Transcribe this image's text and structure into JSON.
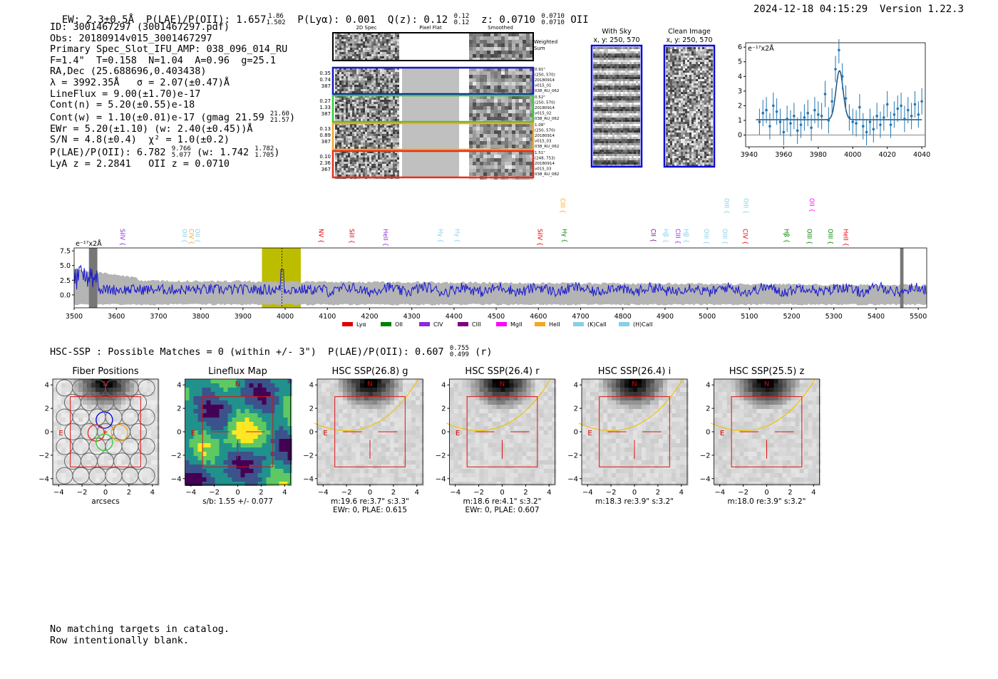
{
  "header": {
    "ew": "EW: 2.3±0.5Å",
    "plae_label": "P(LAE)/P(OII): 1.657",
    "plae_hi": "1.86",
    "plae_lo": "1.502",
    "plya": "P(Lyα): 0.001",
    "qz_label": "Q(z): 0.12",
    "qz_hi": "0.12",
    "qz_lo": "0.12",
    "z_label": "z: 0.0710",
    "z_hi": "0.0710",
    "z_lo": "0.0710",
    "z_line": "OII",
    "timestamp": "2024-12-18 04:15:29",
    "version": "Version 1.22.3"
  },
  "info": {
    "id": "ID: 3001467297 (3001467297.pdf)",
    "obs": "Obs: 20180914v015_3001467297",
    "slot": "Primary Spec_Slot_IFU_AMP: 038_096_014_RU",
    "params": "F=1.4\"  T=0.158  N=1.04  A=0.96  g=25.1",
    "radec": "RA,Dec (25.688696,0.403438)",
    "lambda_sigma": "λ = 3992.35Å   σ = 2.07(±0.47)Å",
    "lineflux": "LineFlux = 9.00(±1.70)e-17",
    "contn": "Cont(n) = 5.20(±0.55)e-18",
    "contw": "Cont(w) = 1.10(±0.01)e-17 (gmag 21.59",
    "gmag_hi": "21.60",
    "gmag_lo": "21.57",
    "contw_end": ")",
    "ewr": "EWr = 5.20(±1.10) (w: 2.40(±0.45))Å",
    "sn_chi": "S/N = 4.8(±0.4)  χ² = 1.0(±0.2)",
    "plae": "P(LAE)/P(OII): 6.782",
    "plae_hi": "9.766",
    "plae_lo": "5.077",
    "plae_w": "(w: 1.742",
    "plae_w_hi": "1.782",
    "plae_w_lo": "1.705",
    "plae_w_end": ")",
    "lya_oii": "LyA z = 2.2841   OII z = 0.0710"
  },
  "cutouts": {
    "col_headers": [
      "2D Spec",
      "Pixel Flat",
      "Smoothed"
    ],
    "weighted_sum": "Weighted\nSum",
    "rows": [
      {
        "left": [
          "0.35",
          "0.74",
          "387"
        ],
        "right": [
          "0.91\"",
          "(250, 570)",
          "20180914",
          "v015_01",
          "038_RU_062"
        ],
        "color": "#1515c8"
      },
      {
        "left": [
          "0.27",
          "1.33",
          "387"
        ],
        "right": [
          "0.52\"",
          "(250, 570)",
          "20180914",
          "v015_02",
          "038_RU_062"
        ],
        "color": "#33cc33"
      },
      {
        "left": [
          "0.13",
          "0.89",
          "387"
        ],
        "right": [
          "1.08\"",
          "(250, 570)",
          "20180914",
          "v015_03",
          "038_RU_062"
        ],
        "color": "#f5a623"
      },
      {
        "left": [
          "0.10",
          "2.36",
          "367"
        ],
        "right": [
          "1.51\"",
          "(248, 753)",
          "20180914",
          "v015_03",
          "038_RU_082"
        ],
        "color": "#e62e1e"
      }
    ]
  },
  "sky_panels": {
    "with_sky_title": "With Sky",
    "with_sky_coords": "x, y: 250, 570",
    "clean_title": "Clean Image",
    "clean_coords": "x, y: 250, 570"
  },
  "zoom_chart_data": {
    "type": "scatter",
    "unit_label": "e⁻¹⁷x2Å",
    "x_ticks": [
      3940,
      3960,
      3980,
      4000,
      4020,
      4040
    ],
    "y_ticks": [
      0,
      1,
      2,
      3,
      4,
      5,
      6
    ],
    "xlim": [
      3938,
      4042
    ],
    "ylim": [
      -0.8,
      6.3
    ],
    "points_x": [
      3946,
      3948,
      3950,
      3952,
      3954,
      3956,
      3958,
      3960,
      3962,
      3964,
      3966,
      3968,
      3970,
      3972,
      3974,
      3976,
      3978,
      3980,
      3982,
      3984,
      3986,
      3988,
      3990,
      3992,
      3994,
      3996,
      3998,
      4000,
      4002,
      4004,
      4006,
      4008,
      4010,
      4012,
      4014,
      4016,
      4018,
      4020,
      4022,
      4024,
      4026,
      4028,
      4030,
      4032,
      4034,
      4036,
      4038,
      4040
    ],
    "points_y": [
      0.9,
      1.5,
      1.7,
      0.6,
      2.0,
      1.6,
      0.9,
      0.2,
      1.1,
      0.8,
      1.3,
      0.3,
      0.7,
      1.2,
      1.5,
      0.5,
      1.7,
      1.4,
      1.3,
      2.8,
      1.0,
      2.3,
      4.5,
      5.8,
      4.0,
      2.5,
      1.2,
      0.9,
      0.8,
      1.9,
      0.6,
      0.2,
      0.9,
      0.4,
      1.3,
      0.7,
      1.2,
      2.1,
      0.7,
      1.4,
      1.8,
      2.0,
      1.1,
      1.7,
      1.3,
      2.1,
      1.4,
      2.3
    ],
    "fit_baseline": 1.05,
    "fit_peak": 4.4,
    "fit_center": 3992.35,
    "fit_sigma": 2.07
  },
  "spectrum_chart_data": {
    "type": "line",
    "unit_label": "e⁻¹⁷x2Å",
    "x_ticks": [
      3500,
      3600,
      3700,
      3800,
      3900,
      4000,
      4100,
      4200,
      4300,
      4400,
      4500,
      4600,
      4700,
      4800,
      4900,
      5000,
      5100,
      5200,
      5300,
      5400,
      5500
    ],
    "y_ticks": [
      "7.5",
      "5.0",
      "2.5",
      "0.0"
    ],
    "xlim": [
      3500,
      5520
    ],
    "ylim": [
      -2.2,
      8.0
    ],
    "line_markers": [
      {
        "label": "SiIV",
        "x": 3605,
        "color": "#8a2be2",
        "tier": 0
      },
      {
        "label": "OII",
        "x": 3752,
        "color": "#87ceeb",
        "tier": 0
      },
      {
        "label": "CIV",
        "x": 3768,
        "color": "#f5a623",
        "tier": 0
      },
      {
        "label": "OII",
        "x": 3782,
        "color": "#87ceeb",
        "tier": 0
      },
      {
        "label": "NV",
        "x": 4075,
        "color": "#e00000",
        "tier": 0
      },
      {
        "label": "SiII",
        "x": 4148,
        "color": "#e00000",
        "tier": 0
      },
      {
        "label": "HeII",
        "x": 4228,
        "color": "#8a2be2",
        "tier": 0
      },
      {
        "label": "Hγ",
        "x": 4358,
        "color": "#87ceeb",
        "tier": 0
      },
      {
        "label": "Hγ",
        "x": 4398,
        "color": "#87ceeb",
        "tier": 0
      },
      {
        "label": "SiIV",
        "x": 4594,
        "color": "#e00000",
        "tier": 0
      },
      {
        "label": "CIII",
        "x": 4648,
        "color": "#f5a623",
        "tier": 1
      },
      {
        "label": "Hγ",
        "x": 4652,
        "color": "#008000",
        "tier": 0
      },
      {
        "label": "CII",
        "x": 4862,
        "color": "#800080",
        "tier": 0
      },
      {
        "label": "Hβ",
        "x": 4892,
        "color": "#87ceeb",
        "tier": 0
      },
      {
        "label": "CIII",
        "x": 4920,
        "color": "#8a2be2",
        "tier": 0
      },
      {
        "label": "Hβ",
        "x": 4940,
        "color": "#87ceeb",
        "tier": 0
      },
      {
        "label": "OIII",
        "x": 4988,
        "color": "#87ceeb",
        "tier": 0
      },
      {
        "label": "OIII",
        "x": 5032,
        "color": "#87ceeb",
        "tier": 0
      },
      {
        "label": "OIII",
        "x": 5036,
        "color": "#87ceeb",
        "tier": 1
      },
      {
        "label": "CIV",
        "x": 5080,
        "color": "#e00000",
        "tier": 0
      },
      {
        "label": "OIII",
        "x": 5082,
        "color": "#87ceeb",
        "tier": 1
      },
      {
        "label": "Hβ",
        "x": 5178,
        "color": "#008000",
        "tier": 0
      },
      {
        "label": "OIII",
        "x": 5232,
        "color": "#008000",
        "tier": 0
      },
      {
        "label": "OII",
        "x": 5238,
        "color": "#ff00ff",
        "tier": 1
      },
      {
        "label": "OIII",
        "x": 5282,
        "color": "#008000",
        "tier": 0
      },
      {
        "label": "HeII",
        "x": 5318,
        "color": "#e00000",
        "tier": 0
      }
    ],
    "legend": [
      {
        "label": "Lyα",
        "color": "#e00000"
      },
      {
        "label": "OII",
        "color": "#008000"
      },
      {
        "label": "CIV",
        "color": "#8a2be2"
      },
      {
        "label": "CIII",
        "color": "#800080"
      },
      {
        "label": "MgII",
        "color": "#ff00ff"
      },
      {
        "label": "HeII",
        "color": "#f5a623"
      },
      {
        "label": "(K)CaII",
        "color": "#87ceeb"
      },
      {
        "label": "(H)CaII",
        "color": "#87ceeb"
      }
    ],
    "highlight_range": [
      3945,
      4037
    ],
    "line_center": 3992.35,
    "masked_regions": [
      [
        3535,
        3555
      ],
      [
        5457,
        5465
      ]
    ],
    "series_seed": 1467297
  },
  "hsc": {
    "title_text": "HSC-SSP : Possible Matches = 0 (within +/- 3\")  P(LAE)/P(OII): 0.607",
    "plae_hi": "0.755",
    "plae_lo": "0.499",
    "band": "(r)"
  },
  "stamp_panels": [
    {
      "title": "Fiber Positions",
      "caption": [
        "arcsecs"
      ],
      "kind": "fibers"
    },
    {
      "title": "Lineflux Map",
      "caption": [
        "s/b: 1.55 +/- 0.077"
      ],
      "kind": "lineflux"
    },
    {
      "title": "HSC SSP(26.8) g",
      "caption": [
        "m:19.6  re:3.7\"  s:3.3\"",
        "EWr: 0, PLAE: 0.615"
      ],
      "kind": "hsc"
    },
    {
      "title": "HSC SSP(26.4) r",
      "caption": [
        "m:18.6  re:4.1\"  s:3.2\"",
        "EWr: 0, PLAE: 0.607"
      ],
      "kind": "hsc"
    },
    {
      "title": "HSC SSP(26.4) i",
      "caption": [
        "m:18.3  re:3.9\"  s:3.2\""
      ],
      "kind": "hsc"
    },
    {
      "title": "HSC SSP(25.5) z",
      "caption": [
        "m:18.0  re:3.9\"  s:3.2\""
      ],
      "kind": "hsc"
    }
  ],
  "stamp_axes": {
    "x_ticks": [
      "−4",
      "−2",
      "0",
      "2",
      "4"
    ],
    "y_ticks": [
      "4",
      "2",
      "0",
      "−2",
      "−4"
    ],
    "north": "N",
    "east": "E"
  },
  "footer": {
    "line1": "No matching targets in catalog.",
    "line2": "Row intentionally blank."
  }
}
